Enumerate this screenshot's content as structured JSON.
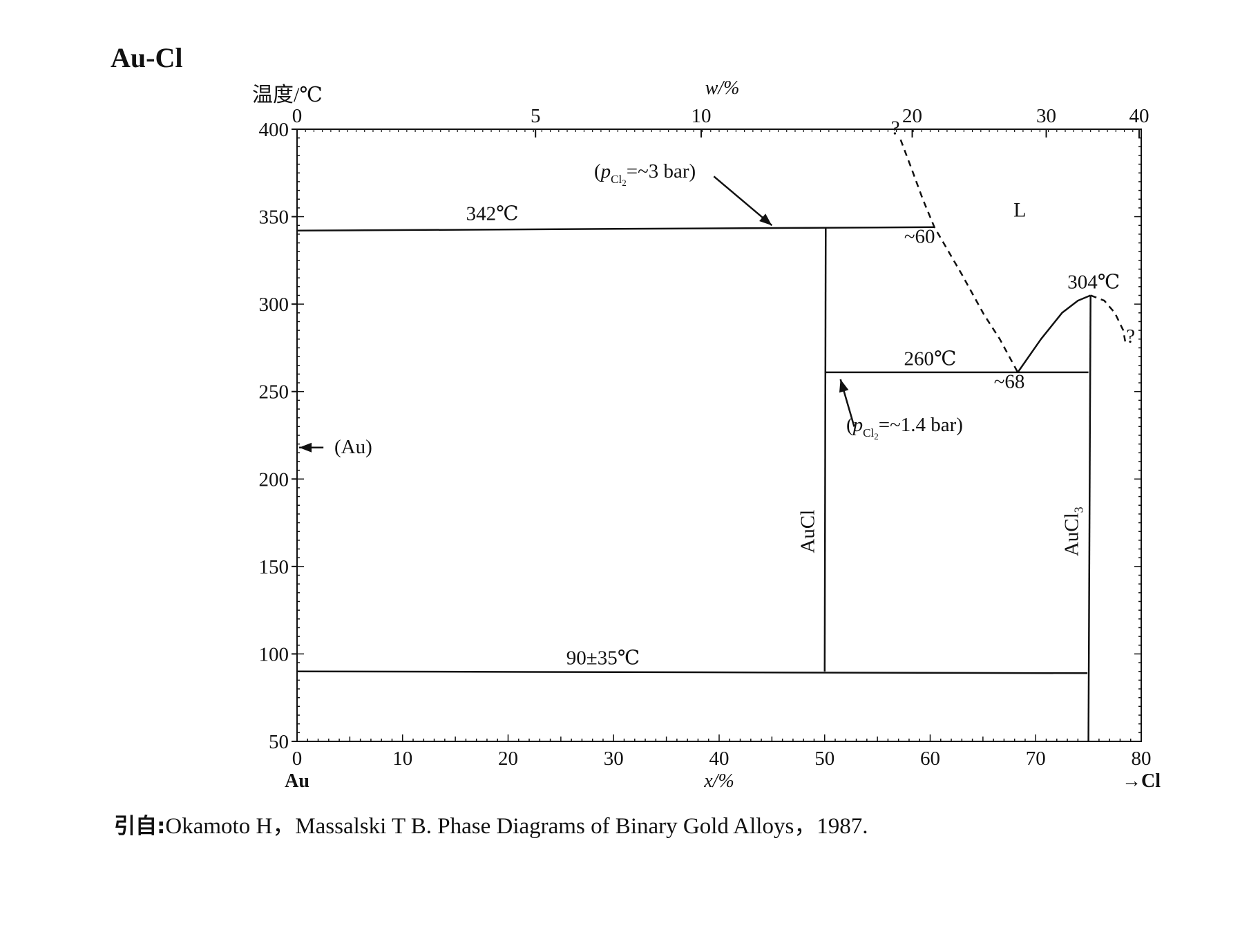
{
  "title": "Au-Cl",
  "citation": {
    "prefix": "引自:",
    "text": "Okamoto H，Massalski T B. Phase Diagrams of Binary Gold Alloys，1987."
  },
  "chart_data": {
    "type": "line",
    "title": "Au-Cl",
    "ylabel": "温度/℃",
    "xlabel": "x/%",
    "top_label": "w/%",
    "ylim": [
      50,
      400
    ],
    "xlim": [
      0,
      80
    ],
    "y_ticks": [
      50,
      100,
      150,
      200,
      250,
      300,
      350,
      400
    ],
    "x_ticks": [
      0,
      10,
      20,
      30,
      40,
      50,
      60,
      70,
      80
    ],
    "w_ticks": [
      {
        "w": 0,
        "x": 0,
        "label": "0"
      },
      {
        "w": 5,
        "x": 22.6,
        "label": "5"
      },
      {
        "w": 10,
        "x": 38.3,
        "label": "10"
      },
      {
        "w": 20,
        "x": 58.3,
        "label": "20"
      },
      {
        "w": 30,
        "x": 71,
        "label": "30"
      },
      {
        "w": 40,
        "x": 79.8,
        "label": "40"
      }
    ],
    "x_end_labels": {
      "left": "Au",
      "right": "→Cl"
    },
    "lines": [
      {
        "name": "eutectoid-342",
        "style": "solid",
        "points": [
          [
            0,
            342
          ],
          [
            60.4,
            344
          ]
        ]
      },
      {
        "name": "eutectic-260",
        "style": "solid",
        "points": [
          [
            50,
            261
          ],
          [
            75,
            261
          ]
        ]
      },
      {
        "name": "low-transition-90",
        "style": "solid",
        "points": [
          [
            0,
            90
          ],
          [
            74.9,
            89
          ]
        ]
      },
      {
        "name": "AuCl-phase",
        "style": "solid",
        "points": [
          [
            50.1,
            344
          ],
          [
            50,
            90
          ]
        ]
      },
      {
        "name": "AuCl3-phase",
        "style": "solid",
        "points": [
          [
            75.2,
            305
          ],
          [
            75,
            50
          ]
        ]
      },
      {
        "name": "AuCl3-liquidus",
        "style": "solid",
        "points": [
          [
            68.3,
            261
          ],
          [
            70.5,
            280
          ],
          [
            72.5,
            295
          ],
          [
            74,
            302
          ],
          [
            75.2,
            305
          ]
        ]
      },
      {
        "name": "liquidus-left",
        "style": "dashed",
        "points": [
          [
            57.2,
            394
          ],
          [
            58.2,
            378
          ],
          [
            59.3,
            360
          ],
          [
            60.4,
            344
          ],
          [
            63,
            317
          ],
          [
            65.1,
            294
          ],
          [
            66.6,
            280
          ],
          [
            68.3,
            261
          ]
        ]
      },
      {
        "name": "liquidus-right",
        "style": "dashed",
        "points": [
          [
            75.2,
            305
          ],
          [
            76.5,
            302
          ],
          [
            77.5,
            295
          ],
          [
            78.3,
            285
          ],
          [
            78.5,
            278
          ]
        ]
      }
    ],
    "annotations": [
      {
        "text": "342℃",
        "x": 18.5,
        "y": 348
      },
      {
        "text": "~60",
        "x": 59,
        "y": 335
      },
      {
        "text": "L",
        "x": 68.5,
        "y": 350
      },
      {
        "text": "304℃",
        "x": 75.5,
        "y": 309
      },
      {
        "text": "260℃",
        "x": 60,
        "y": 265
      },
      {
        "text": "~68",
        "x": 67.5,
        "y": 252
      },
      {
        "text": "90±35℃",
        "x": 29,
        "y": 94
      },
      {
        "text": "?",
        "x": 56.7,
        "y": 397
      },
      {
        "text": "?",
        "x": 79,
        "y": 278
      },
      {
        "text": "AuCl",
        "x": 49,
        "y": 170,
        "rotate": -90
      },
      {
        "text": "AuCl3",
        "x": 74,
        "y": 170,
        "rotate": -90
      },
      {
        "text": "(Au)",
        "x": 3.8,
        "y": 218
      }
    ],
    "arrows": [
      {
        "label": "(pCl2=~3 bar)",
        "from": [
          39.5,
          373
        ],
        "to": [
          45,
          345
        ]
      },
      {
        "label": "(pCl2=~1.4 bar)",
        "from": [
          52.8,
          230
        ],
        "to": [
          51.5,
          257
        ]
      },
      {
        "label": "(Au)",
        "from": [
          2.5,
          218
        ],
        "to": [
          0.2,
          218
        ]
      }
    ]
  }
}
